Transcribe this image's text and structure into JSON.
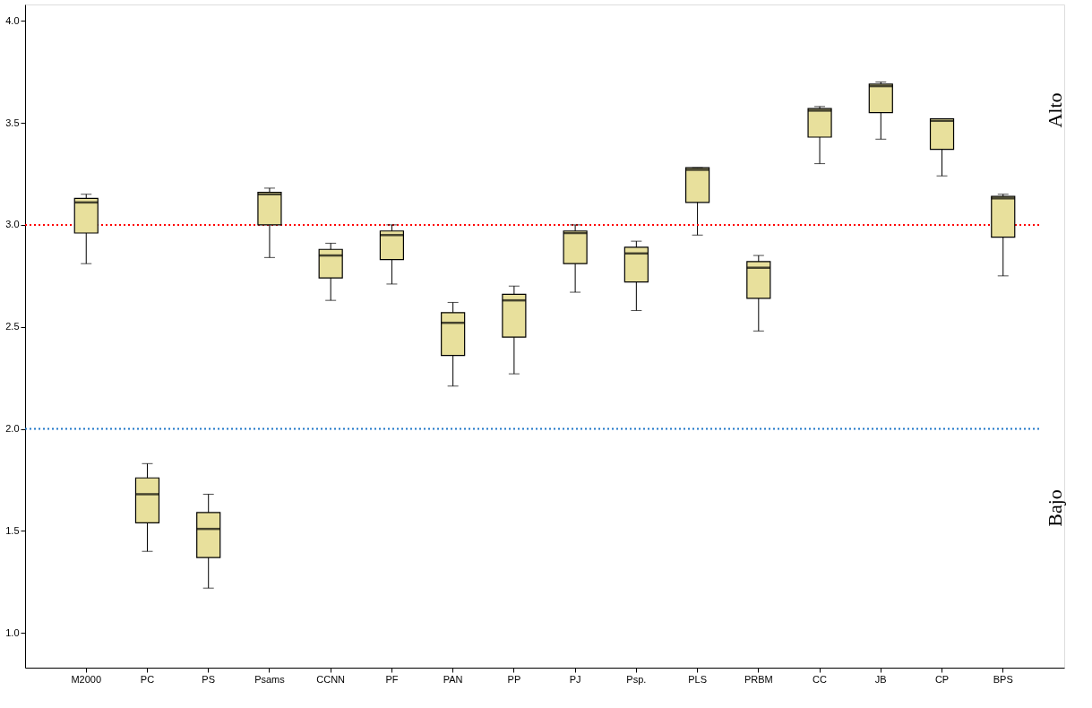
{
  "chart_data": {
    "type": "box",
    "categories": [
      "M2000",
      "PC",
      "PS",
      "Psams",
      "CCNN",
      "PF",
      "PAN",
      "PP",
      "PJ",
      "Psp.",
      "PLS",
      "PRBM",
      "CC",
      "JB",
      "CP",
      "BPS"
    ],
    "series": [
      {
        "color": "#e8e09c",
        "boxes": [
          {
            "low": 2.81,
            "q1": 2.96,
            "median": 3.11,
            "q3": 3.13,
            "high": 3.15
          },
          {
            "low": 1.4,
            "q1": 1.54,
            "median": 1.68,
            "q3": 1.76,
            "high": 1.83
          },
          {
            "low": 1.22,
            "q1": 1.37,
            "median": 1.51,
            "q3": 1.59,
            "high": 1.68
          },
          {
            "low": 2.84,
            "q1": 3.0,
            "median": 3.15,
            "q3": 3.16,
            "high": 3.18
          },
          {
            "low": 2.63,
            "q1": 2.74,
            "median": 2.85,
            "q3": 2.88,
            "high": 2.91
          },
          {
            "low": 2.71,
            "q1": 2.83,
            "median": 2.95,
            "q3": 2.97,
            "high": 3.0
          },
          {
            "low": 2.21,
            "q1": 2.36,
            "median": 2.52,
            "q3": 2.57,
            "high": 2.62
          },
          {
            "low": 2.27,
            "q1": 2.45,
            "median": 2.63,
            "q3": 2.66,
            "high": 2.7
          },
          {
            "low": 2.67,
            "q1": 2.81,
            "median": 2.96,
            "q3": 2.97,
            "high": 3.0
          },
          {
            "low": 2.58,
            "q1": 2.72,
            "median": 2.86,
            "q3": 2.89,
            "high": 2.92
          },
          {
            "low": 2.95,
            "q1": 3.11,
            "median": 3.27,
            "q3": 3.28,
            "high": 3.28
          },
          {
            "low": 2.48,
            "q1": 2.64,
            "median": 2.79,
            "q3": 2.82,
            "high": 2.85
          },
          {
            "low": 3.3,
            "q1": 3.43,
            "median": 3.56,
            "q3": 3.57,
            "high": 3.58
          },
          {
            "low": 3.42,
            "q1": 3.55,
            "median": 3.68,
            "q3": 3.69,
            "high": 3.7
          },
          {
            "low": 3.24,
            "q1": 3.37,
            "median": 3.51,
            "q3": 3.52,
            "high": 3.52
          },
          {
            "low": 2.75,
            "q1": 2.94,
            "median": 3.13,
            "q3": 3.14,
            "high": 3.15
          }
        ]
      }
    ],
    "ylim": [
      0.83,
      4.08
    ],
    "yticks": [
      {
        "value": 1,
        "label": "1.0"
      },
      {
        "value": 1.5,
        "label": "1.5"
      },
      {
        "value": 2,
        "label": "2.0"
      },
      {
        "value": 2.5,
        "label": "2.5"
      },
      {
        "value": 3,
        "label": "3.0"
      },
      {
        "value": 3.5,
        "label": "3.5"
      },
      {
        "value": 4,
        "label": "4.0"
      }
    ],
    "ref_lines": [
      {
        "axis": "y",
        "value": 3,
        "color": "#ff0000",
        "line_style": "dotted"
      },
      {
        "axis": "y",
        "value": 2,
        "color": "#1f77c8",
        "line_style": "dotted"
      }
    ],
    "annotations": [
      "Alto",
      "Bajo"
    ],
    "grid": false
  }
}
